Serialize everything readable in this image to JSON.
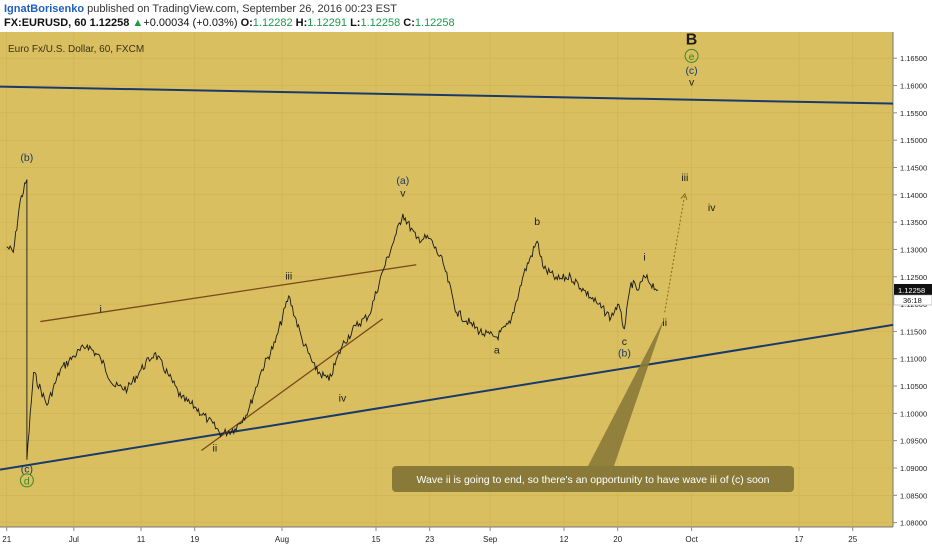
{
  "header": {
    "author": "IgnatBorisenko",
    "published": "published on TradingView.com, September 26, 2016 00:23 EST",
    "symbol": "FX:EURUSD, 60",
    "last": "1.12258",
    "change": "+0.00034 (+0.03%)",
    "open_label": "O:",
    "open": "1.12282",
    "high_label": "H:",
    "high": "1.12291",
    "low_label": "L:",
    "low": "1.12258",
    "close_label": "C:",
    "close": "1.12258"
  },
  "chart_data": {
    "type": "line",
    "title": "Euro Fx/U.S. Dollar, 60, FXCM",
    "price_axis": {
      "ticks": [
        "1.16500",
        "1.16000",
        "1.15500",
        "1.15000",
        "1.14500",
        "1.14000",
        "1.13500",
        "1.13000",
        "1.12500",
        "1.12000",
        "1.11500",
        "1.11000",
        "1.10500",
        "1.10000",
        "1.09500",
        "1.09000",
        "1.08500",
        "1.08000"
      ],
      "range": [
        1.0792,
        1.1698
      ]
    },
    "time_axis": {
      "ticks": [
        "21",
        "Jul",
        "11",
        "19",
        "Aug",
        "15",
        "23",
        "Sep",
        "12",
        "20",
        "Oct",
        "17",
        "25"
      ],
      "range": [
        "2016-06-20",
        "2016-10-31"
      ]
    },
    "last_price_label": "1.12258",
    "countdown_label": "36:18",
    "price_series": [
      [
        "2016-06-21",
        1.1305
      ],
      [
        "2016-06-22",
        1.1295
      ],
      [
        "2016-06-23",
        1.1388
      ],
      [
        "2016-06-24",
        1.1428
      ],
      [
        "2016-06-24",
        1.0915
      ],
      [
        "2016-06-25",
        1.1075
      ],
      [
        "2016-06-27",
        1.1015
      ],
      [
        "2016-06-29",
        1.108
      ],
      [
        "2016-07-01",
        1.1105
      ],
      [
        "2016-07-03",
        1.1125
      ],
      [
        "2016-07-05",
        1.11
      ],
      [
        "2016-07-07",
        1.105
      ],
      [
        "2016-07-09",
        1.1045
      ],
      [
        "2016-07-11",
        1.108
      ],
      [
        "2016-07-13",
        1.111
      ],
      [
        "2016-07-15",
        1.1072
      ],
      [
        "2016-07-17",
        1.1028
      ],
      [
        "2016-07-19",
        1.1012
      ],
      [
        "2016-07-21",
        1.0988
      ],
      [
        "2016-07-23",
        1.0962
      ],
      [
        "2016-07-25",
        1.0972
      ],
      [
        "2016-07-27",
        1.1005
      ],
      [
        "2016-07-29",
        1.108
      ],
      [
        "2016-07-31",
        1.113
      ],
      [
        "2016-08-02",
        1.1215
      ],
      [
        "2016-08-04",
        1.1135
      ],
      [
        "2016-08-06",
        1.108
      ],
      [
        "2016-08-08",
        1.106
      ],
      [
        "2016-08-10",
        1.1125
      ],
      [
        "2016-08-12",
        1.116
      ],
      [
        "2016-08-14",
        1.118
      ],
      [
        "2016-08-16",
        1.126
      ],
      [
        "2016-08-18",
        1.1328
      ],
      [
        "2016-08-19",
        1.1365
      ],
      [
        "2016-08-21",
        1.132
      ],
      [
        "2016-08-23",
        1.132
      ],
      [
        "2016-08-25",
        1.1275
      ],
      [
        "2016-08-27",
        1.1185
      ],
      [
        "2016-08-29",
        1.1165
      ],
      [
        "2016-08-31",
        1.1145
      ],
      [
        "2016-09-02",
        1.114
      ],
      [
        "2016-09-04",
        1.1165
      ],
      [
        "2016-09-06",
        1.1255
      ],
      [
        "2016-09-08",
        1.1315
      ],
      [
        "2016-09-09",
        1.1265
      ],
      [
        "2016-09-11",
        1.1245
      ],
      [
        "2016-09-13",
        1.125
      ],
      [
        "2016-09-15",
        1.1225
      ],
      [
        "2016-09-17",
        1.12
      ],
      [
        "2016-09-19",
        1.1175
      ],
      [
        "2016-09-20",
        1.12
      ],
      [
        "2016-09-21",
        1.1155
      ],
      [
        "2016-09-22",
        1.124
      ],
      [
        "2016-09-23",
        1.1225
      ],
      [
        "2016-09-24",
        1.125
      ],
      [
        "2016-09-26",
        1.1226
      ]
    ],
    "trendlines": [
      {
        "name": "upper-channel",
        "color": "#1b3a6b",
        "from": [
          "2016-06-20",
          1.1598
        ],
        "to": [
          "2016-10-31",
          1.1567
        ]
      },
      {
        "name": "lower-channel",
        "color": "#1b3a6b",
        "from": [
          "2016-06-20",
          1.0897
        ],
        "to": [
          "2016-10-31",
          1.1162
        ]
      },
      {
        "name": "triangle-upper",
        "color": "#7a4a1a",
        "from": [
          "2016-06-26",
          1.1168
        ],
        "to": [
          "2016-08-21",
          1.1272
        ]
      },
      {
        "name": "triangle-lower",
        "color": "#7a4a1a",
        "from": [
          "2016-07-20",
          1.0932
        ],
        "to": [
          "2016-08-16",
          1.1173
        ]
      }
    ],
    "projection": {
      "from": [
        "2016-09-27",
        1.1185
      ],
      "to": [
        "2016-09-30",
        1.1402
      ]
    },
    "wave_labels": [
      {
        "text": "B",
        "date": "2016-10-01",
        "price": 1.1675,
        "color": "#1c1c1c",
        "circle": null
      },
      {
        "text": "e",
        "date": "2016-10-01",
        "price": 1.1647,
        "color": "#3a8a2a",
        "circle": "green"
      },
      {
        "text": "(c)",
        "date": "2016-10-01",
        "price": 1.1621,
        "color": "#1b3a6b",
        "circle": null
      },
      {
        "text": "v",
        "date": "2016-10-01",
        "price": 1.16,
        "color": "#1c1c1c",
        "circle": null
      },
      {
        "text": "(b)",
        "date": "2016-06-24",
        "price": 1.1462,
        "color": "#1b3a6b",
        "circle": null
      },
      {
        "text": "(c)",
        "date": "2016-06-24",
        "price": 1.0892,
        "color": "#1b3a6b",
        "circle": null
      },
      {
        "text": "d",
        "date": "2016-06-24",
        "price": 1.087,
        "color": "#3a8a2a",
        "circle": "green"
      },
      {
        "text": "i",
        "date": "2016-07-05",
        "price": 1.1185,
        "color": "#1c1c1c",
        "circle": null
      },
      {
        "text": "iii",
        "date": "2016-08-02",
        "price": 1.1245,
        "color": "#1c1c1c",
        "circle": null
      },
      {
        "text": "ii",
        "date": "2016-07-22",
        "price": 1.093,
        "color": "#1c1c1c",
        "circle": null
      },
      {
        "text": "iv",
        "date": "2016-08-10",
        "price": 1.1022,
        "color": "#1c1c1c",
        "circle": null
      },
      {
        "text": "(a)",
        "date": "2016-08-19",
        "price": 1.142,
        "color": "#1b3a6b",
        "circle": null
      },
      {
        "text": "v",
        "date": "2016-08-19",
        "price": 1.1397,
        "color": "#1c1c1c",
        "circle": null
      },
      {
        "text": "b",
        "date": "2016-09-08",
        "price": 1.1345,
        "color": "#1c1c1c",
        "circle": null
      },
      {
        "text": "a",
        "date": "2016-09-02",
        "price": 1.111,
        "color": "#1c1c1c",
        "circle": null
      },
      {
        "text": "i",
        "date": "2016-09-24",
        "price": 1.128,
        "color": "#1c1c1c",
        "circle": null
      },
      {
        "text": "c",
        "date": "2016-09-21",
        "price": 1.1125,
        "color": "#1c1c1c",
        "circle": null
      },
      {
        "text": "(b)",
        "date": "2016-09-21",
        "price": 1.1104,
        "color": "#1b3a6b",
        "circle": null
      },
      {
        "text": "ii",
        "date": "2016-09-27",
        "price": 1.116,
        "color": "#1c1c1c",
        "circle": null
      },
      {
        "text": "iii",
        "date": "2016-09-30",
        "price": 1.1425,
        "color": "#1c1c1c",
        "circle": null
      },
      {
        "text": "iv",
        "date": "2016-10-04",
        "price": 1.137,
        "color": "#1c1c1c",
        "circle": null
      }
    ],
    "callout": {
      "text": "Wave ii is going to end, so there's an opportunity to have wave iii of (c) soon",
      "color": "#8a7a3a",
      "pointer_date": "2016-09-27",
      "pointer_price": 1.1175
    }
  },
  "colors": {
    "chart_bg": "#d9bf5f",
    "axis_bg": "#ffffff",
    "price_line": "#1a1a1a",
    "last_price_bg": "#111111"
  }
}
